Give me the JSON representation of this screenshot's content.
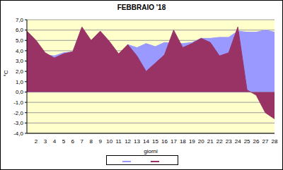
{
  "chart_data": {
    "type": "area",
    "title": "FEBBRAIO '18",
    "x_label": "giorni",
    "y_label": "°C",
    "categories": [
      null,
      "2",
      "3",
      "4",
      "5",
      "6",
      "7",
      "8",
      "9",
      "10",
      "11",
      "12",
      "13",
      "14",
      "15",
      "16",
      "17",
      "18",
      "19",
      "20",
      "21",
      "22",
      "23",
      "24",
      "25",
      "26",
      "27",
      "28"
    ],
    "series": [
      {
        "color": "#9999ff",
        "values": [
          5.8,
          4.9,
          3.6,
          3.5,
          3.8,
          3.9,
          6.1,
          4.9,
          4.8,
          4.6,
          3.2,
          4.6,
          4.3,
          4.7,
          4.4,
          4.8,
          4.7,
          4.7,
          4.8,
          5.2,
          5.2,
          5.3,
          5.3,
          5.9,
          5.8,
          5.8,
          6.0,
          5.8
        ]
      },
      {
        "color": "#993366",
        "values": [
          5.9,
          5.0,
          3.8,
          3.3,
          3.7,
          3.9,
          6.3,
          5.0,
          5.9,
          4.9,
          3.7,
          4.6,
          3.5,
          2.0,
          2.8,
          3.6,
          6.0,
          4.3,
          4.7,
          5.2,
          4.8,
          3.5,
          3.8,
          6.3,
          0.2,
          -0.3,
          -2.0,
          -2.6
        ]
      }
    ],
    "ylim": [
      -4,
      7
    ],
    "yticks": [
      {
        "value": -4,
        "label": "-4,0"
      },
      {
        "value": -3,
        "label": "-3,0"
      },
      {
        "value": -2,
        "label": "-2,0"
      },
      {
        "value": -1,
        "label": "-1,0"
      },
      {
        "value": 0,
        "label": "0,0"
      },
      {
        "value": 1,
        "label": "1,0"
      },
      {
        "value": 2,
        "label": "2,0"
      },
      {
        "value": 3,
        "label": "3,0"
      },
      {
        "value": 4,
        "label": "4,0"
      },
      {
        "value": 5,
        "label": "5,0"
      },
      {
        "value": 6,
        "label": "6,0"
      },
      {
        "value": 7,
        "label": "7,0"
      }
    ],
    "grid": true
  }
}
